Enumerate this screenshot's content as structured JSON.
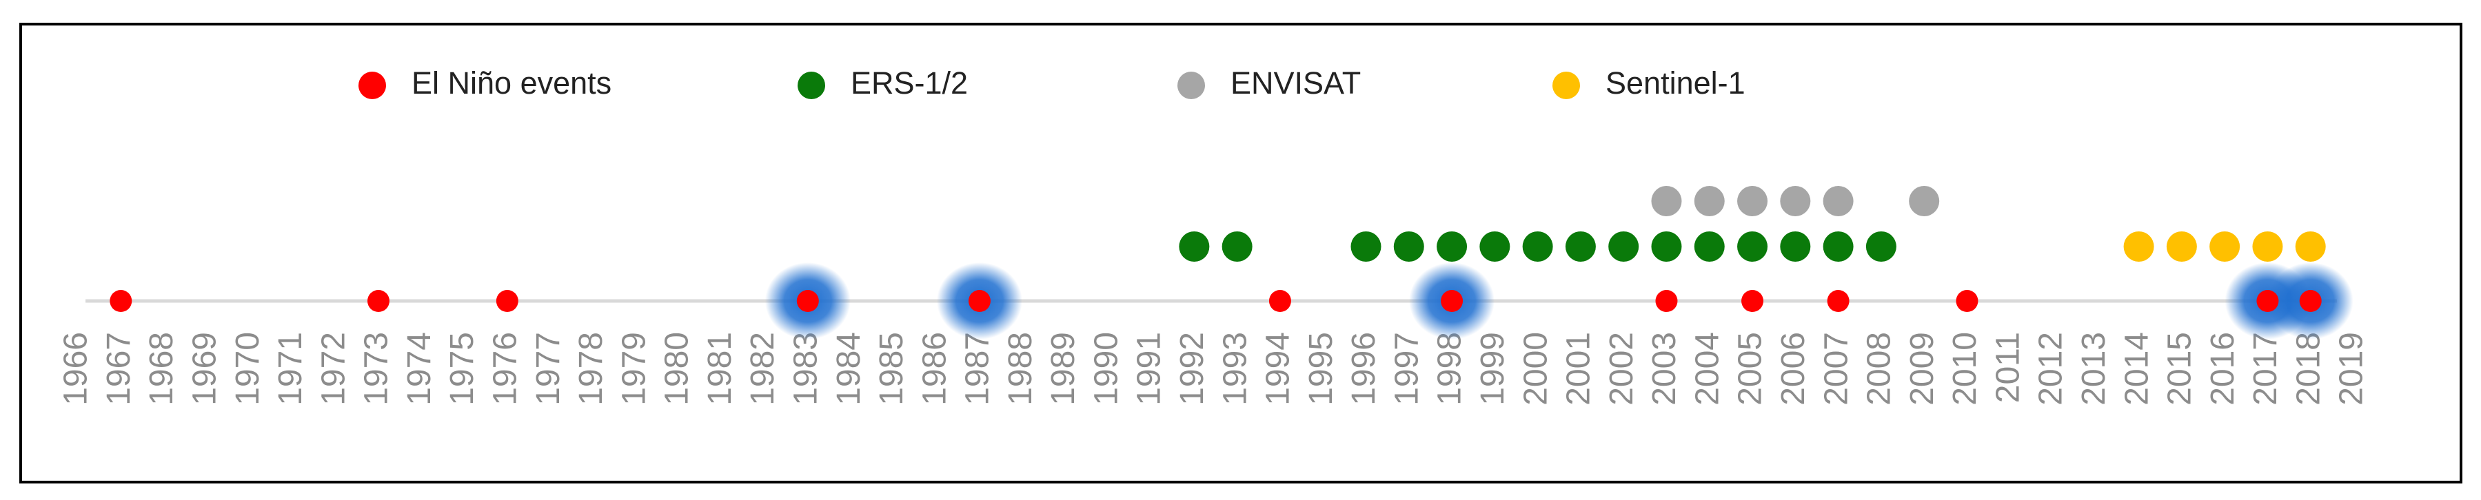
{
  "chart_data": {
    "type": "timeline",
    "series": [
      {
        "name": "El Niño events",
        "color": "#ff0000",
        "values": [
          1967,
          1973,
          1976,
          1983,
          1987,
          1994,
          1998,
          2003,
          2005,
          2007,
          2010,
          2017,
          2018
        ]
      },
      {
        "name": "ERS-1/2",
        "color": "#0a7a0a",
        "values": [
          1992,
          1993,
          1996,
          1997,
          1998,
          1999,
          2000,
          2001,
          2002,
          2003,
          2004,
          2005,
          2006,
          2007,
          2008
        ]
      },
      {
        "name": "ENVISAT",
        "color": "#a6a6a6",
        "values": [
          2003,
          2004,
          2005,
          2006,
          2007,
          2009
        ]
      },
      {
        "name": "Sentinel-1",
        "color": "#ffc000",
        "values": [
          2014,
          2015,
          2016,
          2017,
          2018
        ]
      }
    ],
    "highlighted": [
      1983,
      1987,
      1998,
      2017,
      2018
    ],
    "highlight_color": "#1f6fd0",
    "xlim": [
      1966,
      2019
    ],
    "xticks": [
      1966,
      1967,
      1968,
      1969,
      1970,
      1971,
      1972,
      1973,
      1974,
      1975,
      1976,
      1977,
      1978,
      1979,
      1980,
      1981,
      1982,
      1983,
      1984,
      1985,
      1986,
      1987,
      1988,
      1989,
      1990,
      1991,
      1992,
      1993,
      1994,
      1995,
      1996,
      1997,
      1998,
      1999,
      2000,
      2001,
      2002,
      2003,
      2004,
      2005,
      2006,
      2007,
      2008,
      2009,
      2010,
      2011,
      2012,
      2013,
      2014,
      2015,
      2016,
      2017,
      2018,
      2019
    ]
  }
}
